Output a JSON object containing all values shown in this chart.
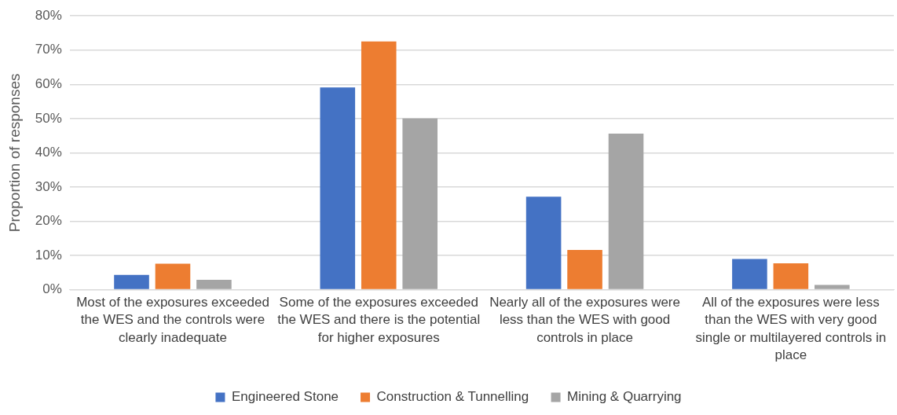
{
  "chart_data": {
    "type": "bar",
    "ylabel": "Proportion of responses",
    "categories": [
      "Most of the exposures exceeded the WES and the controls were clearly inadequate",
      "Some of the exposures exceeded the WES and there is the potential for higher exposures",
      "Nearly all of the exposures were less than the WES with good controls in place",
      "All of the exposures were less than the WES with very good single or multilayered controls in place"
    ],
    "series": [
      {
        "name": "Engineered Stone",
        "color": "#4472c4",
        "values": [
          4.3,
          59.1,
          27.2,
          9.0
        ]
      },
      {
        "name": "Construction & Tunnelling",
        "color": "#ed7d31",
        "values": [
          7.6,
          72.5,
          11.6,
          7.7
        ]
      },
      {
        "name": "Mining & Quarrying",
        "color": "#a5a5a5",
        "values": [
          2.9,
          50.0,
          45.6,
          1.4
        ]
      }
    ],
    "ylim": [
      0,
      80
    ],
    "yticks": [
      {
        "value": 0,
        "label": "0%"
      },
      {
        "value": 10,
        "label": "10%"
      },
      {
        "value": 20,
        "label": "20%"
      },
      {
        "value": 30,
        "label": "30%"
      },
      {
        "value": 40,
        "label": "40%"
      },
      {
        "value": 50,
        "label": "50%"
      },
      {
        "value": 60,
        "label": "60%"
      },
      {
        "value": 70,
        "label": "70%"
      },
      {
        "value": 80,
        "label": "80%"
      }
    ],
    "grid": "y",
    "legend": "bottom"
  }
}
